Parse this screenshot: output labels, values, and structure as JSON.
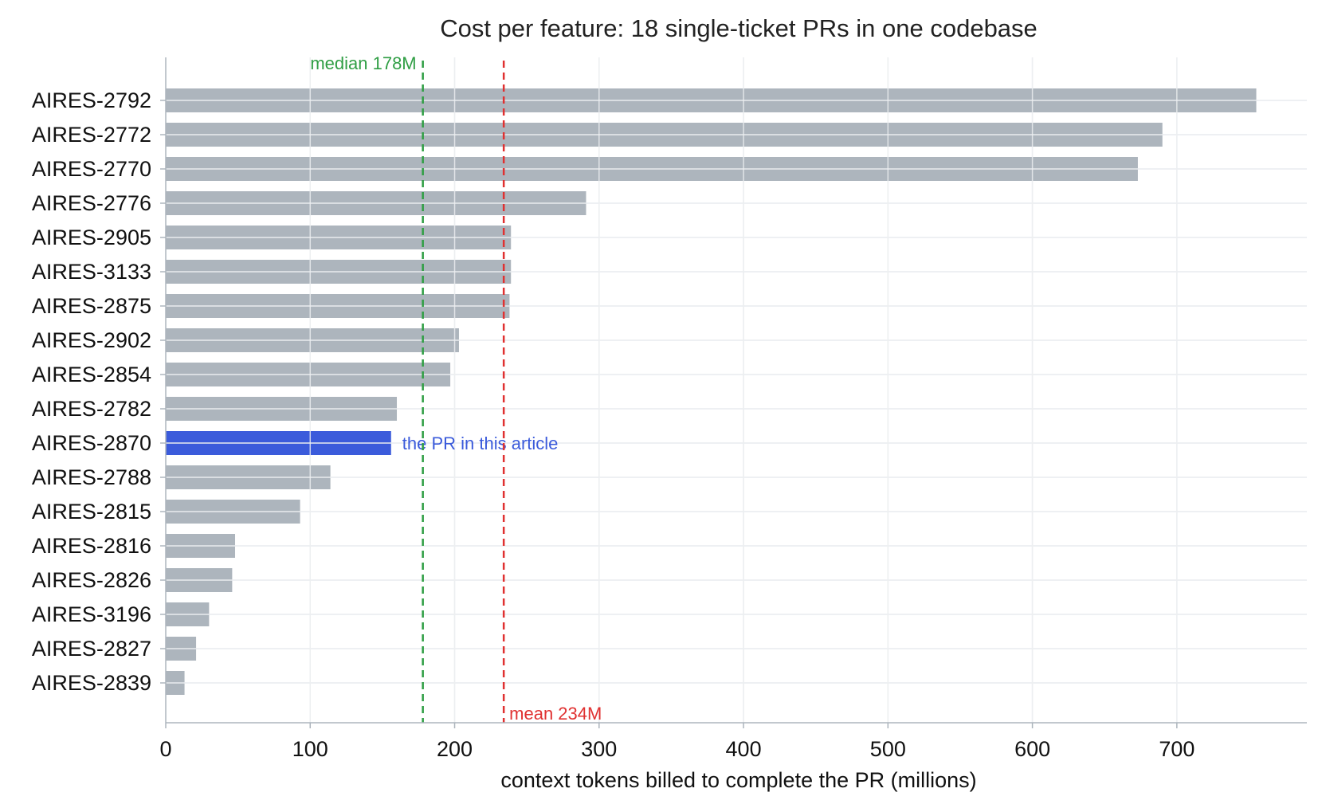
{
  "chart_data": {
    "type": "bar",
    "orientation": "horizontal",
    "title": "Cost per feature: 18 single-ticket PRs in one codebase",
    "xlabel": "context tokens billed to complete the PR (millions)",
    "ylabel": "",
    "xlim": [
      0,
      790
    ],
    "xticks": [
      0,
      100,
      200,
      300,
      400,
      500,
      600,
      700
    ],
    "grid": true,
    "categories": [
      "AIRES-2792",
      "AIRES-2772",
      "AIRES-2770",
      "AIRES-2776",
      "AIRES-2905",
      "AIRES-3133",
      "AIRES-2875",
      "AIRES-2902",
      "AIRES-2854",
      "AIRES-2782",
      "AIRES-2870",
      "AIRES-2788",
      "AIRES-2815",
      "AIRES-2816",
      "AIRES-2826",
      "AIRES-3196",
      "AIRES-2827",
      "AIRES-2839"
    ],
    "values": [
      755,
      690,
      673,
      291,
      239,
      239,
      238,
      203,
      197,
      160,
      156,
      114,
      93,
      48,
      46,
      30,
      21,
      13
    ],
    "highlight": {
      "category": "AIRES-2870",
      "label": "the PR in this article",
      "color": "#3b5bdb"
    },
    "reference_lines": [
      {
        "name": "median",
        "value": 178,
        "label": "median 178M",
        "color": "#2f9e44",
        "label_position": "top-left"
      },
      {
        "name": "mean",
        "value": 234,
        "label": "mean 234M",
        "color": "#e03131",
        "label_position": "bottom-right"
      }
    ],
    "colors": {
      "bar": "#adb5bd",
      "grid": "#e9ecef",
      "axis": "#adb5bd"
    }
  }
}
